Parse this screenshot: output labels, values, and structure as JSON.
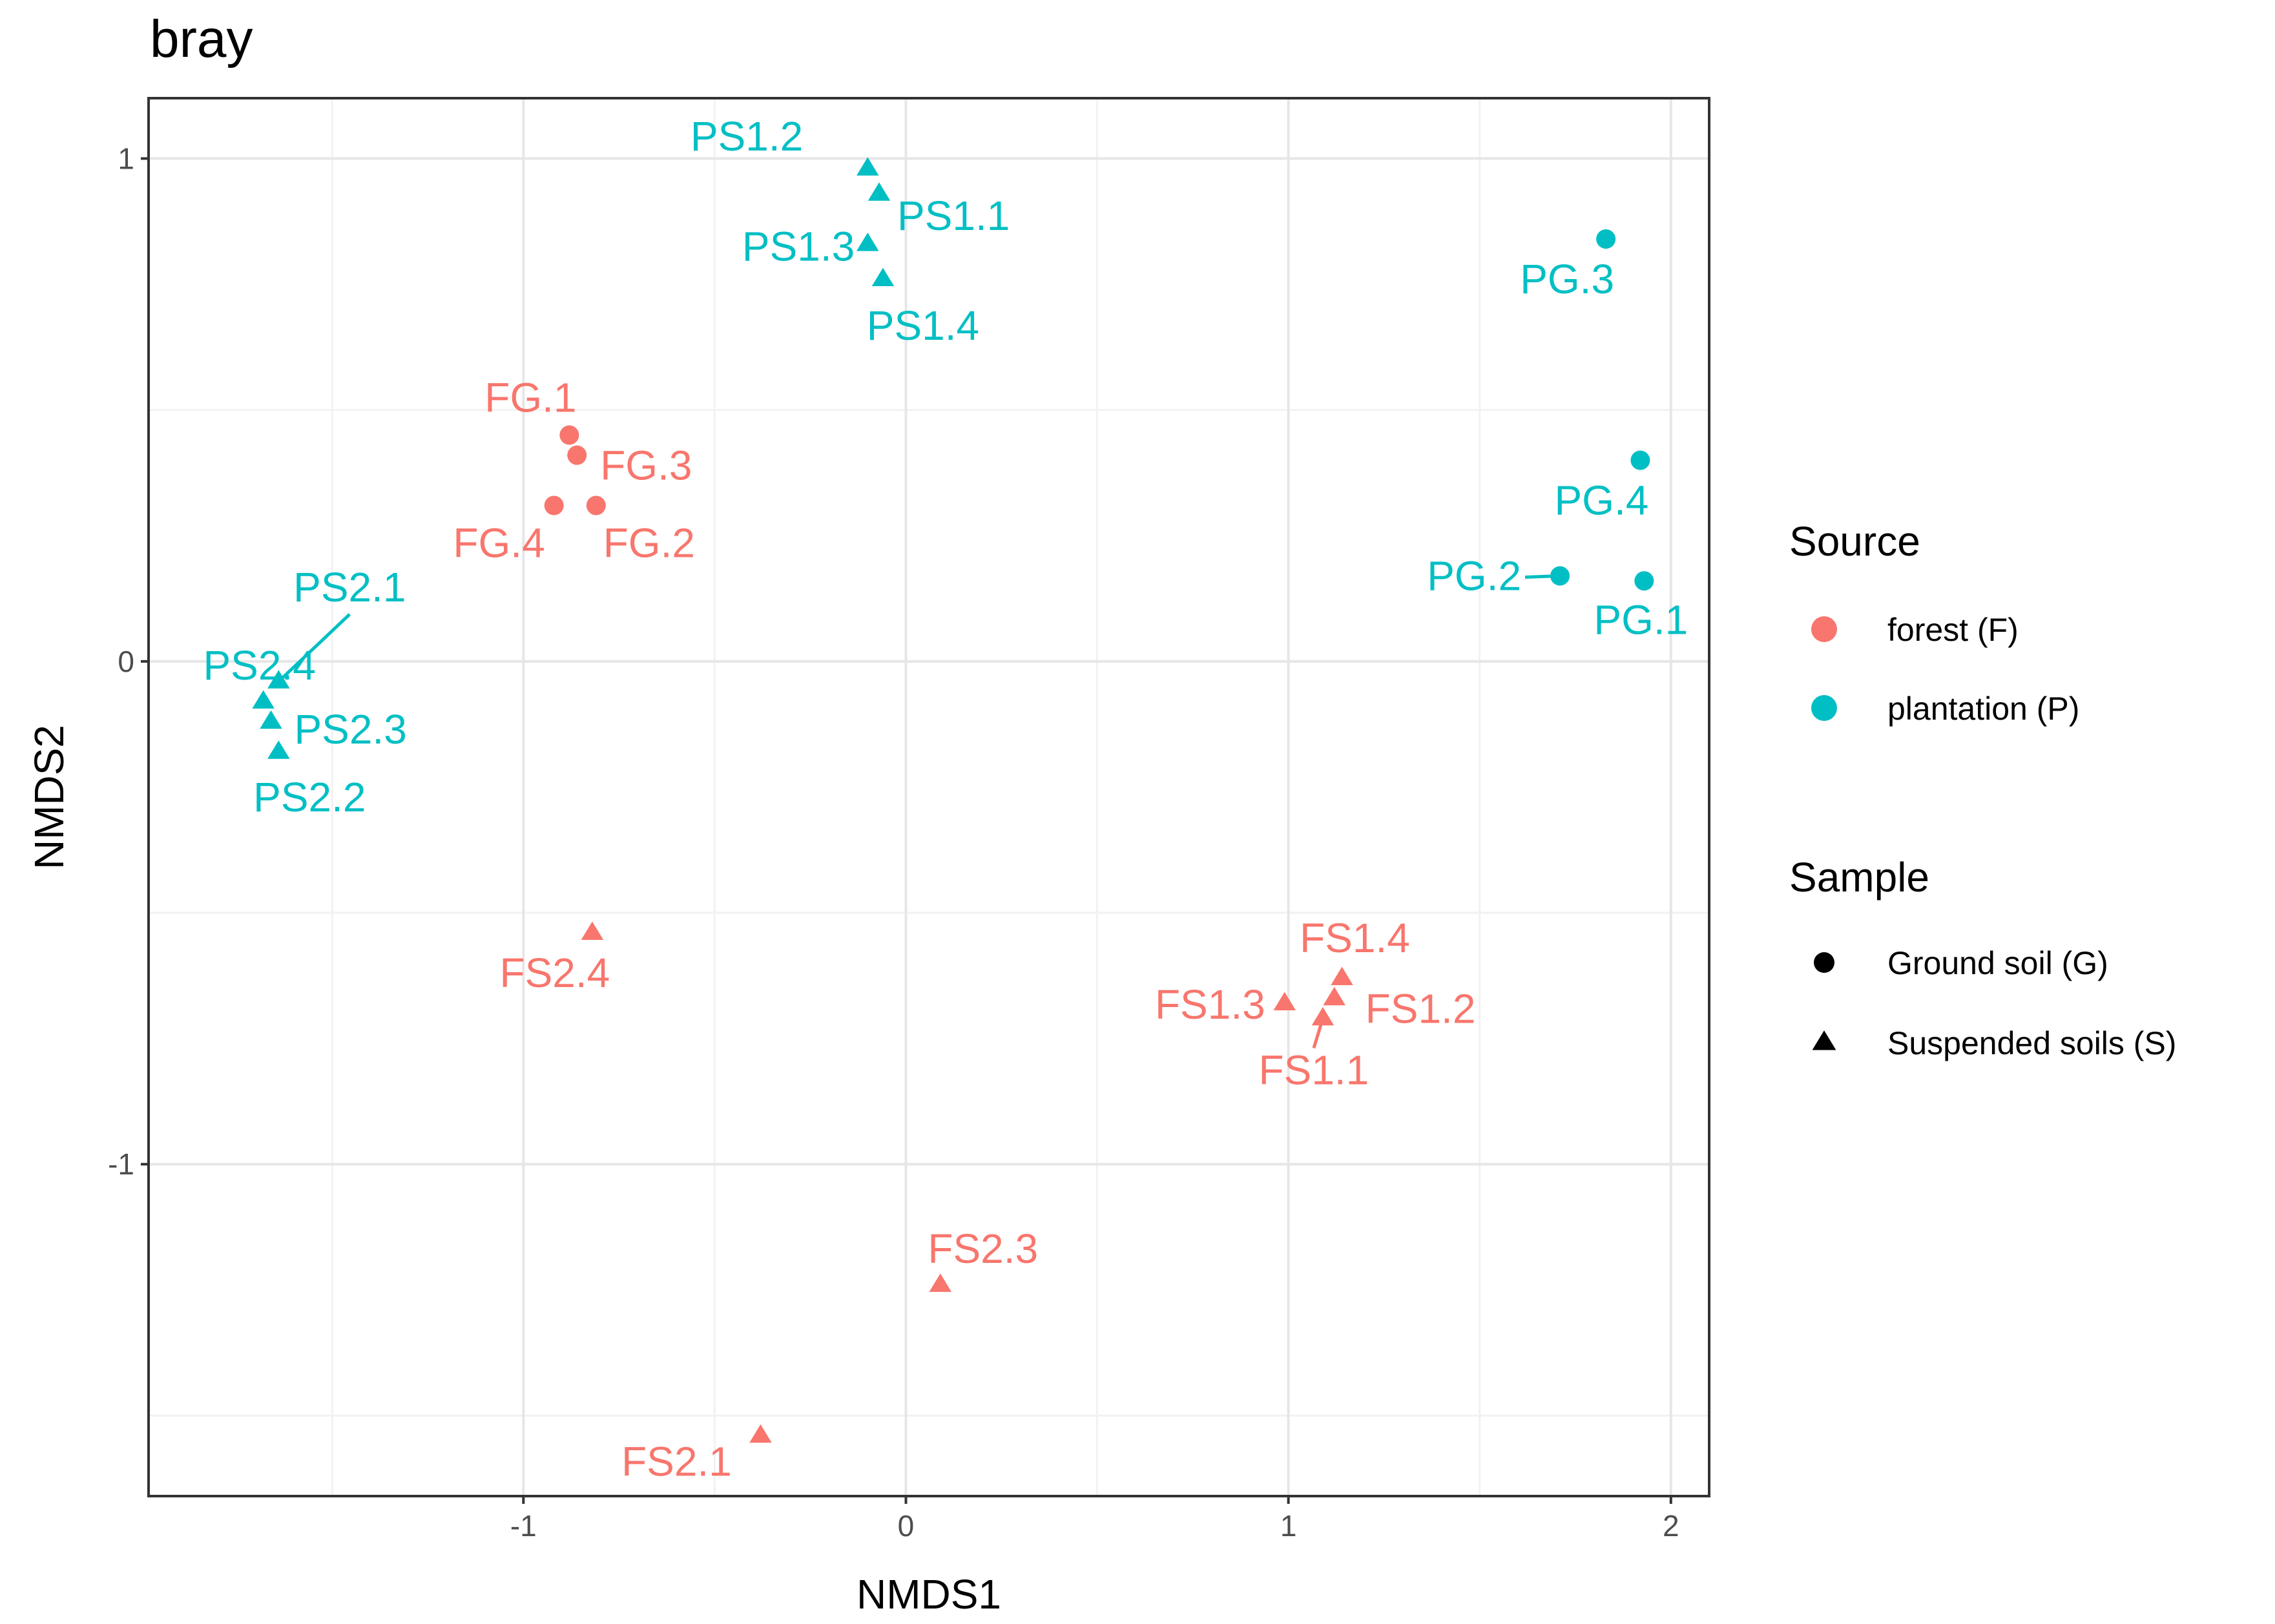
{
  "chart_data": {
    "type": "scatter",
    "title": "bray",
    "xlabel": "NMDS1",
    "ylabel": "NMDS2",
    "xlim": [
      -1.98,
      2.1
    ],
    "ylim": [
      -1.66,
      1.12
    ],
    "x_ticks": [
      {
        "value": -1,
        "label": "-1"
      },
      {
        "value": 0,
        "label": "0"
      },
      {
        "value": 1,
        "label": "1"
      },
      {
        "value": 2,
        "label": "2"
      }
    ],
    "y_ticks": [
      {
        "value": 1,
        "label": "1"
      },
      {
        "value": 0,
        "label": "0"
      },
      {
        "value": -1,
        "label": "-1"
      }
    ],
    "colors": {
      "forest": "#f8766d",
      "plantation": "#00bfc4"
    },
    "legend": {
      "position": "right",
      "source_title": "Source",
      "source_items": [
        {
          "key": "forest",
          "label": "forest (F)"
        },
        {
          "key": "plantation",
          "label": "plantation (P)"
        }
      ],
      "sample_title": "Sample",
      "sample_items": [
        {
          "key": "G",
          "label": "Ground soil (G)",
          "shape": "circle"
        },
        {
          "key": "S",
          "label": "Suspended soils (S)",
          "shape": "triangle"
        }
      ]
    },
    "points": [
      {
        "label": "PS1.2",
        "x": -0.1,
        "y": 0.98,
        "source": "plantation",
        "sample": "S"
      },
      {
        "label": "PS1.1",
        "x": -0.07,
        "y": 0.93,
        "source": "plantation",
        "sample": "S"
      },
      {
        "label": "PS1.3",
        "x": -0.1,
        "y": 0.83,
        "source": "plantation",
        "sample": "S"
      },
      {
        "label": "PS1.4",
        "x": -0.06,
        "y": 0.76,
        "source": "plantation",
        "sample": "S"
      },
      {
        "label": "PG.3",
        "x": 1.83,
        "y": 0.84,
        "source": "plantation",
        "sample": "G"
      },
      {
        "label": "PG.4",
        "x": 1.92,
        "y": 0.4,
        "source": "plantation",
        "sample": "G"
      },
      {
        "label": "PG.2",
        "x": 1.71,
        "y": 0.17,
        "source": "plantation",
        "sample": "G"
      },
      {
        "label": "PG.1",
        "x": 1.93,
        "y": 0.16,
        "source": "plantation",
        "sample": "G"
      },
      {
        "label": "PS2.1",
        "x": -1.64,
        "y": -0.04,
        "source": "plantation",
        "sample": "S"
      },
      {
        "label": "PS2.4",
        "x": -1.68,
        "y": -0.08,
        "source": "plantation",
        "sample": "S"
      },
      {
        "label": "PS2.3",
        "x": -1.66,
        "y": -0.12,
        "source": "plantation",
        "sample": "S"
      },
      {
        "label": "PS2.2",
        "x": -1.64,
        "y": -0.18,
        "source": "plantation",
        "sample": "S"
      },
      {
        "label": "FG.1",
        "x": -0.88,
        "y": 0.45,
        "source": "forest",
        "sample": "G"
      },
      {
        "label": "FG.3",
        "x": -0.86,
        "y": 0.41,
        "source": "forest",
        "sample": "G"
      },
      {
        "label": "FG.4",
        "x": -0.92,
        "y": 0.31,
        "source": "forest",
        "sample": "G"
      },
      {
        "label": "FG.2",
        "x": -0.81,
        "y": 0.31,
        "source": "forest",
        "sample": "G"
      },
      {
        "label": "FS2.4",
        "x": -0.82,
        "y": -0.54,
        "source": "forest",
        "sample": "S"
      },
      {
        "label": "FS1.4",
        "x": 1.14,
        "y": -0.63,
        "source": "forest",
        "sample": "S"
      },
      {
        "label": "FS1.2",
        "x": 1.12,
        "y": -0.67,
        "source": "forest",
        "sample": "S"
      },
      {
        "label": "FS1.3",
        "x": 0.99,
        "y": -0.68,
        "source": "forest",
        "sample": "S"
      },
      {
        "label": "FS1.1",
        "x": 1.09,
        "y": -0.71,
        "source": "forest",
        "sample": "S"
      },
      {
        "label": "FS2.3",
        "x": 0.09,
        "y": -1.24,
        "source": "forest",
        "sample": "S"
      },
      {
        "label": "FS2.1",
        "x": -0.38,
        "y": -1.54,
        "source": "forest",
        "sample": "S"
      }
    ]
  }
}
